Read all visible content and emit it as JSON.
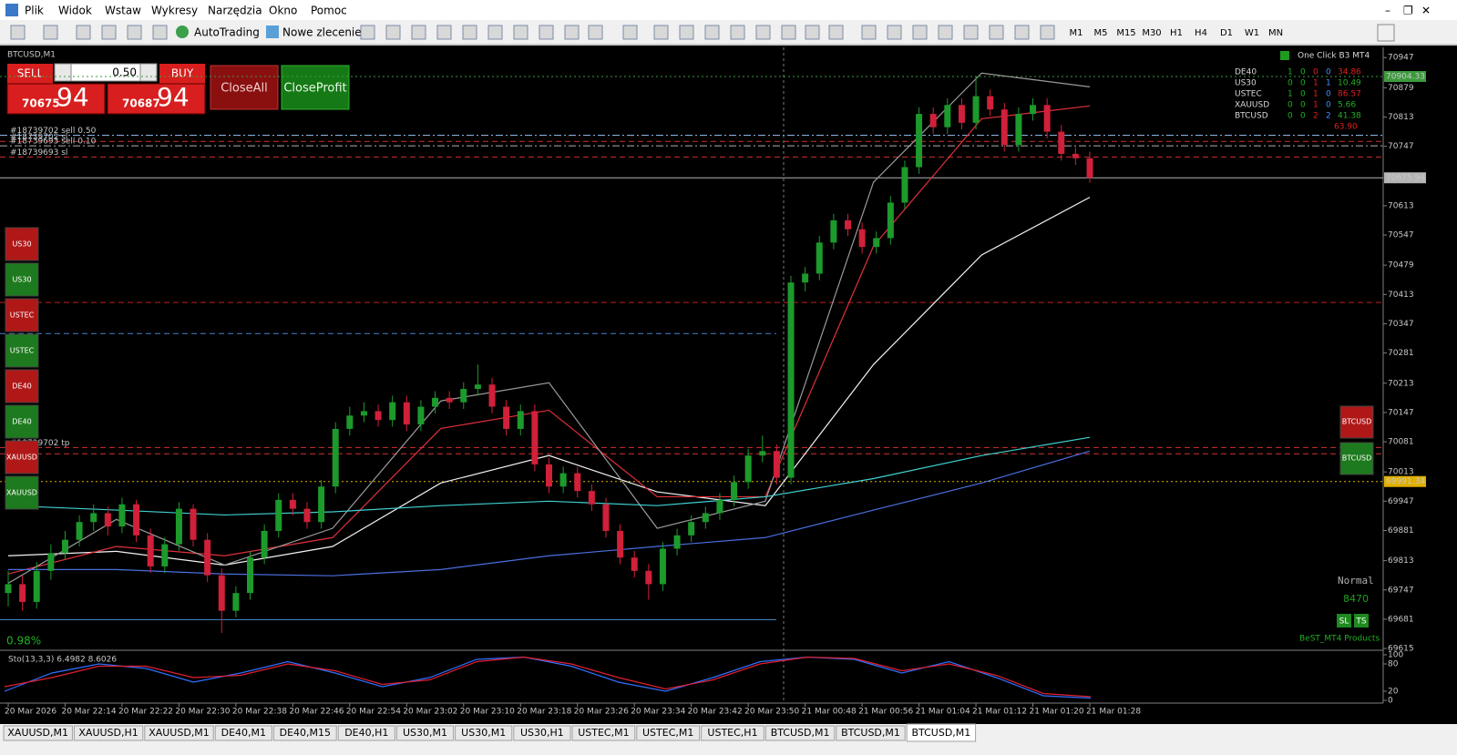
{
  "menu": [
    "Plik",
    "Widok",
    "Wstaw",
    "Wykresy",
    "Narzędzia",
    "Okno",
    "Pomoc"
  ],
  "toolbar": {
    "autotrading": "AutoTrading",
    "new_order": "Nowe zlecenie",
    "timeframes": [
      "M1",
      "M5",
      "M15",
      "M30",
      "H1",
      "H4",
      "D1",
      "W1",
      "MN"
    ]
  },
  "trade_panel": {
    "sell": "SELL",
    "buy": "BUY",
    "lot": "0.50",
    "bid_main": 70675,
    "bid_pips": 94,
    "ask_main": 70687,
    "ask_pips": 94,
    "close_all": "CloseAll",
    "close_profit": "CloseProfit"
  },
  "left_buttons": [
    {
      "label": "US30",
      "color": "#b01818"
    },
    {
      "label": "US30",
      "color": "#1e7a1e"
    },
    {
      "label": "USTEC",
      "color": "#b01818"
    },
    {
      "label": "USTEC",
      "color": "#1e7a1e"
    },
    {
      "label": "DE40",
      "color": "#b01818"
    },
    {
      "label": "DE40",
      "color": "#1e7a1e"
    },
    {
      "label": "XAUUSD",
      "color": "#b01818"
    },
    {
      "label": "XAUUSD",
      "color": "#1e7a1e"
    }
  ],
  "right_buttons": [
    {
      "label": "BTCUSD",
      "color": "#b01818"
    },
    {
      "label": "BTCUSD",
      "color": "#1e7a1e"
    }
  ],
  "info_panel": {
    "title": "One Click B3 MT4",
    "rows": [
      {
        "symbol": "DE40",
        "counts": [
          1,
          0,
          0,
          0
        ],
        "profit": 34.86,
        "color": "#e02020"
      },
      {
        "symbol": "US30",
        "counts": [
          0,
          0,
          1,
          1
        ],
        "profit": 10.49,
        "color": "#22b022"
      },
      {
        "symbol": "USTEC",
        "counts": [
          1,
          0,
          1,
          0
        ],
        "profit": 86.57,
        "color": "#e02020"
      },
      {
        "symbol": "XAUUSD",
        "counts": [
          0,
          0,
          1,
          0
        ],
        "profit": 5.66,
        "color": "#22b022"
      },
      {
        "symbol": "BTCUSD",
        "counts": [
          0,
          0,
          2,
          2
        ],
        "profit": 41.38,
        "color": "#22b022"
      }
    ],
    "total": {
      "value": 63.9,
      "label": "63.90"
    }
  },
  "status": {
    "percent": "0.98%",
    "mode": "Normal",
    "counter": 8470,
    "sl": "SL",
    "ts": "TS",
    "brand": "BeST_MT4 Products"
  },
  "chart_data": {
    "type": "candlestick",
    "title": "BTCUSD,M1",
    "ylim": [
      69611,
      70970
    ],
    "yticks": [
      70947,
      70879,
      70813,
      70747,
      70613,
      70547,
      70479,
      70413,
      70347,
      70281,
      70213,
      70147,
      70081,
      70013,
      69947,
      69881,
      69813,
      69747,
      69681,
      69615
    ],
    "x_labels": [
      "20 Mar 2026",
      "20 Mar 22:14",
      "20 Mar 22:22",
      "20 Mar 22:30",
      "20 Mar 22:38",
      "20 Mar 22:46",
      "20 Mar 22:54",
      "20 Mar 23:02",
      "20 Mar 23:10",
      "20 Mar 23:18",
      "20 Mar 23:26",
      "20 Mar 23:34",
      "20 Mar 23:42",
      "20 Mar 23:50",
      "21 Mar 00:48",
      "21 Mar 00:56",
      "21 Mar 01:04",
      "21 Mar 01:12",
      "21 Mar 01:20",
      "21 Mar 01:28"
    ],
    "up_color": "#1c9a2c",
    "down_color": "#d0203a",
    "candles": [
      [
        69740,
        69790,
        69710,
        69760
      ],
      [
        69760,
        69780,
        69700,
        69720
      ],
      [
        69720,
        69810,
        69705,
        69790
      ],
      [
        69790,
        69850,
        69770,
        69830
      ],
      [
        69830,
        69880,
        69815,
        69860
      ],
      [
        69860,
        69915,
        69845,
        69900
      ],
      [
        69900,
        69940,
        69880,
        69920
      ],
      [
        69920,
        69935,
        69870,
        69890
      ],
      [
        69890,
        69955,
        69875,
        69940
      ],
      [
        69940,
        69950,
        69855,
        69870
      ],
      [
        69870,
        69885,
        69785,
        69800
      ],
      [
        69800,
        69865,
        69785,
        69850
      ],
      [
        69850,
        69945,
        69835,
        69930
      ],
      [
        69930,
        69940,
        69845,
        69860
      ],
      [
        69860,
        69875,
        69765,
        69780
      ],
      [
        69780,
        69795,
        69650,
        69700
      ],
      [
        69700,
        69755,
        69685,
        69740
      ],
      [
        69740,
        69835,
        69725,
        69820
      ],
      [
        69820,
        69895,
        69805,
        69880
      ],
      [
        69880,
        69965,
        69865,
        69950
      ],
      [
        69950,
        69965,
        69915,
        69930
      ],
      [
        69930,
        69945,
        69885,
        69900
      ],
      [
        69900,
        69995,
        69885,
        69980
      ],
      [
        69980,
        70125,
        69965,
        70110
      ],
      [
        70110,
        70160,
        70095,
        70140
      ],
      [
        70140,
        70170,
        70125,
        70150
      ],
      [
        70150,
        70165,
        70115,
        70130
      ],
      [
        70130,
        70185,
        70115,
        70170
      ],
      [
        70170,
        70185,
        70105,
        70120
      ],
      [
        70120,
        70175,
        70105,
        70160
      ],
      [
        70160,
        70195,
        70145,
        70180
      ],
      [
        70180,
        70195,
        70155,
        70170
      ],
      [
        70170,
        70215,
        70155,
        70200
      ],
      [
        70200,
        70255,
        70185,
        70210
      ],
      [
        70210,
        70225,
        70145,
        70160
      ],
      [
        70160,
        70175,
        70095,
        70110
      ],
      [
        70110,
        70165,
        70095,
        70150
      ],
      [
        70150,
        70165,
        70015,
        70030
      ],
      [
        70030,
        70045,
        69965,
        69980
      ],
      [
        69980,
        70025,
        69965,
        70010
      ],
      [
        70010,
        70025,
        69955,
        69970
      ],
      [
        69970,
        69985,
        69925,
        69940
      ],
      [
        69940,
        69955,
        69865,
        69880
      ],
      [
        69880,
        69895,
        69805,
        69820
      ],
      [
        69820,
        69835,
        69775,
        69790
      ],
      [
        69790,
        69805,
        69725,
        69760
      ],
      [
        69760,
        69855,
        69745,
        69840
      ],
      [
        69840,
        69885,
        69825,
        69870
      ],
      [
        69870,
        69915,
        69855,
        69900
      ],
      [
        69900,
        69935,
        69885,
        69920
      ],
      [
        69920,
        69965,
        69905,
        69950
      ],
      [
        69950,
        70005,
        69935,
        69990
      ],
      [
        69990,
        70065,
        69975,
        70050
      ],
      [
        70050,
        70095,
        70035,
        70060
      ],
      [
        70060,
        70075,
        69985,
        70000
      ],
      [
        70000,
        70455,
        69985,
        70440
      ],
      [
        70440,
        70475,
        70420,
        70460
      ],
      [
        70460,
        70545,
        70445,
        70530
      ],
      [
        70530,
        70595,
        70515,
        70580
      ],
      [
        70580,
        70595,
        70545,
        70560
      ],
      [
        70560,
        70575,
        70505,
        70520
      ],
      [
        70520,
        70555,
        70505,
        70540
      ],
      [
        70540,
        70635,
        70525,
        70620
      ],
      [
        70620,
        70715,
        70605,
        70700
      ],
      [
        70700,
        70835,
        70685,
        70820
      ],
      [
        70820,
        70835,
        70775,
        70790
      ],
      [
        70790,
        70855,
        70775,
        70840
      ],
      [
        70840,
        70855,
        70785,
        70800
      ],
      [
        70800,
        70904,
        70785,
        70860
      ],
      [
        70860,
        70875,
        70815,
        70830
      ],
      [
        70830,
        70845,
        70735,
        70750
      ],
      [
        70750,
        70835,
        70735,
        70820
      ],
      [
        70820,
        70855,
        70805,
        70840
      ],
      [
        70840,
        70855,
        70765,
        70780
      ],
      [
        70780,
        70795,
        70715,
        70730
      ],
      [
        70730,
        70745,
        70705,
        70720
      ],
      [
        70720,
        70735,
        70665,
        70675.94
      ]
    ],
    "ma_lines": [
      {
        "color": "#f2f2f2",
        "values": [
          69824,
          69834,
          69803,
          69845,
          69988,
          70050,
          69968,
          69937,
          70255,
          70502,
          70632
        ]
      },
      {
        "color": "#e0303a",
        "values": [
          69783,
          69845,
          69824,
          69865,
          70111,
          70152,
          69957,
          69957,
          70522,
          70809,
          70838
        ]
      },
      {
        "color": "#9a9a9a",
        "values": [
          69762,
          69906,
          69803,
          69886,
          70173,
          70214,
          69886,
          69947,
          70666,
          70912,
          70881
        ]
      },
      {
        "color": "#40d0d0",
        "values": [
          69937,
          69927,
          69916,
          69923,
          69937,
          69947,
          69937,
          69957,
          69998,
          70050,
          70091
        ]
      },
      {
        "color": "#4a6ee0",
        "values": [
          69793,
          69793,
          69783,
          69779,
          69793,
          69824,
          69845,
          69865,
          69927,
          69988,
          70060
        ]
      }
    ],
    "price_lines": [
      {
        "value": 70904.33,
        "label": "70904.33",
        "color": "#3c9a3c",
        "style": "dotted"
      },
      {
        "value": 70675.94,
        "label": "70675.94",
        "color": "#b4b4b4",
        "style": "solid"
      },
      {
        "value": 70395,
        "color": "#c02020",
        "style": "dashed"
      },
      {
        "value": 69991.34,
        "label": "69991.34",
        "color": "#e0b000",
        "style": "dotted"
      }
    ],
    "history_lines": [
      {
        "value": 70325,
        "color": "#4a7fd0",
        "style": "dashed"
      },
      {
        "value": 69680,
        "color": "#4a90d0",
        "style": "solid"
      }
    ],
    "order_levels": [
      {
        "label": "#18739702 sell 0.50",
        "value": 70772,
        "color": "#8ab4e0",
        "style": "dashdot"
      },
      {
        "label": "#18739702 sl",
        "value": 70758,
        "color": "#d03030",
        "style": "dashed"
      },
      {
        "label": "#18739693 sell 0.10",
        "value": 70748,
        "color": "#b0b0b0",
        "style": "dashdot"
      },
      {
        "label": "#18739693 sl",
        "value": 70723,
        "color": "#d03030",
        "style": "dashed"
      },
      {
        "label": "#18739702 tp",
        "value": 70068,
        "color": "#d03030",
        "style": "dashed"
      },
      {
        "label": "693 tp",
        "value": 70054,
        "color": "#d03030",
        "style": "dashed"
      }
    ],
    "stochastic": {
      "title": "Sto(13,3,3) 6.4982 8.6026",
      "ylim": [
        0,
        100
      ],
      "yticks": [
        100,
        80,
        20,
        0
      ],
      "series": [
        {
          "color": "#3070ff",
          "values": [
            20,
            60,
            80,
            70,
            40,
            60,
            85,
            60,
            30,
            50,
            90,
            95,
            75,
            40,
            20,
            50,
            85,
            95,
            90,
            60,
            85,
            50,
            10,
            5
          ]
        },
        {
          "color": "#e02030",
          "values": [
            30,
            50,
            75,
            75,
            50,
            55,
            80,
            65,
            35,
            45,
            85,
            95,
            80,
            50,
            25,
            45,
            80,
            95,
            92,
            65,
            80,
            55,
            15,
            8
          ]
        }
      ]
    }
  },
  "tabs": [
    "XAUUSD,M1",
    "XAUUSD,H1",
    "XAUUSD,M1",
    "DE40,M1",
    "DE40,M15",
    "DE40,H1",
    "US30,M1",
    "US30,M1",
    "US30,H1",
    "USTEC,M1",
    "USTEC,M1",
    "USTEC,H1",
    "BTCUSD,M1",
    "BTCUSD,M1",
    "BTCUSD,M1"
  ],
  "active_tab": 14
}
